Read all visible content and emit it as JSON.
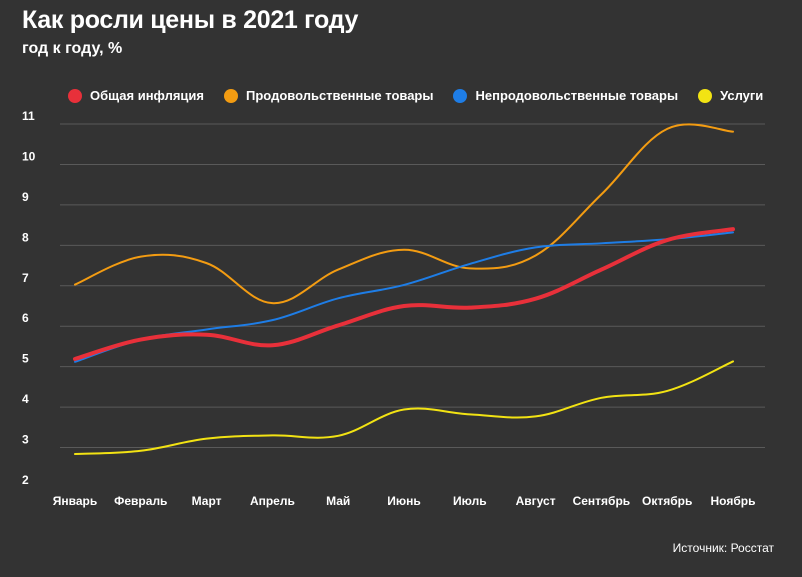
{
  "title": "Как росли цены в 2021 году",
  "subtitle": "год к году, %",
  "source": "Источник: Росстат",
  "chart_data": {
    "type": "line",
    "x": [
      "Январь",
      "Февраль",
      "Март",
      "Апрель",
      "Май",
      "Июнь",
      "Июль",
      "Август",
      "Сентябрь",
      "Октябрь",
      "Ноябрь"
    ],
    "ylim": [
      2,
      11
    ],
    "yticks": [
      "2",
      "3",
      "4",
      "5",
      "6",
      "7",
      "8",
      "9",
      "10",
      "11"
    ],
    "grid": true,
    "legend_position": "top",
    "series": [
      {
        "name": "Общая инфляция",
        "color": "#e8303a",
        "values": [
          5.19,
          5.67,
          5.79,
          5.53,
          6.02,
          6.5,
          6.46,
          6.68,
          7.4,
          8.13,
          8.4
        ]
      },
      {
        "name": "Продовольственные товары",
        "color": "#f39c12",
        "values": [
          7.03,
          7.72,
          7.56,
          6.57,
          7.4,
          7.89,
          7.43,
          7.75,
          9.26,
          10.88,
          10.81
        ]
      },
      {
        "name": "Непродовольственные товары",
        "color": "#1e7de6",
        "values": [
          5.12,
          5.67,
          5.92,
          6.15,
          6.69,
          7.02,
          7.54,
          7.95,
          8.05,
          8.15,
          8.32
        ]
      },
      {
        "name": "Услуги",
        "color": "#f2e313",
        "values": [
          2.84,
          2.92,
          3.22,
          3.3,
          3.29,
          3.94,
          3.82,
          3.77,
          4.23,
          4.4,
          5.13
        ]
      }
    ]
  }
}
